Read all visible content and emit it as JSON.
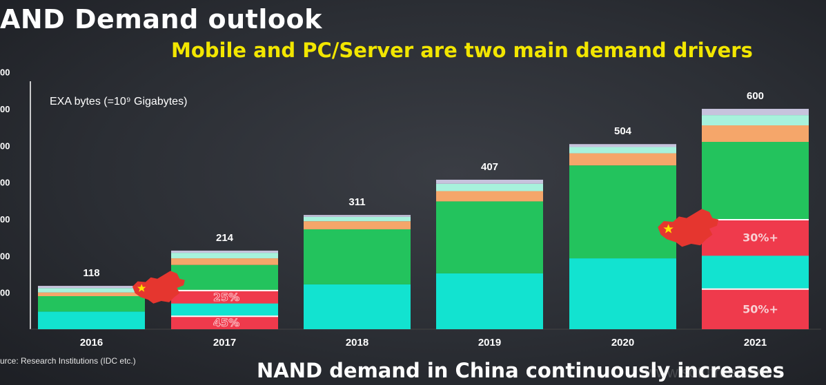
{
  "slide": {
    "title": "AND Demand outlook",
    "subtitle": "Mobile and PC/Server are two main demand drivers",
    "footer": "NAND demand in China continuously increases",
    "source": "urce: Research Institutions (IDC etc.)",
    "watermark": "www.sotufree.com"
  },
  "colors": {
    "cyan": "#12e3d0",
    "green": "#23c35d",
    "orange": "#f5a66a",
    "mint": "#a7f2dc",
    "lavender": "#c7c3dd",
    "red": "#ef3a4c",
    "china_map": "#e5362f",
    "star": "#ffe000"
  },
  "chart_data": {
    "type": "bar",
    "stacked": true,
    "unit_label": "EXA bytes (=10⁹ Gigabytes)",
    "categories": [
      "2016",
      "2017",
      "2018",
      "2019",
      "2020",
      "2021"
    ],
    "totals": [
      118,
      214,
      311,
      407,
      504,
      600
    ],
    "ylim": [
      0,
      700
    ],
    "y_ticks": [
      100,
      200,
      300,
      400,
      500,
      600,
      700
    ],
    "y_tick_labels": [
      "00",
      "00",
      "00",
      "00",
      "00",
      "00",
      "00"
    ],
    "series": [
      {
        "color": "cyan",
        "values": [
          48,
          95,
          122,
          152,
          193,
          220
        ]
      },
      {
        "color": "green",
        "values": [
          42,
          80,
          150,
          196,
          253,
          290
        ]
      },
      {
        "color": "orange",
        "values": [
          10,
          18,
          22,
          28,
          33,
          45
        ]
      },
      {
        "color": "mint",
        "values": [
          12,
          15,
          12,
          20,
          17,
          28
        ]
      },
      {
        "color": "lavender",
        "values": [
          6,
          6,
          5,
          11,
          8,
          17
        ]
      }
    ],
    "china_segments": [
      {
        "category": "2017",
        "label": "45%",
        "from": 0,
        "to": 37
      },
      {
        "category": "2017",
        "label": "25%",
        "from": 70,
        "to": 107
      },
      {
        "category": "2021",
        "label": "50%+",
        "from": 0,
        "to": 111
      },
      {
        "category": "2021",
        "label": "30%+",
        "from": 200,
        "to": 300
      }
    ]
  }
}
